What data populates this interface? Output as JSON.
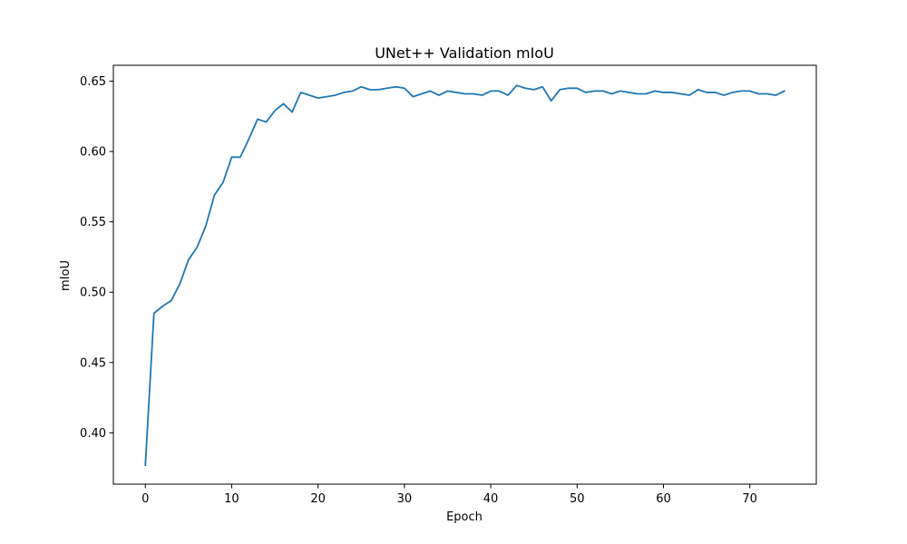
{
  "chart_data": {
    "type": "line",
    "title": "UNet++ Validation mIoU",
    "xlabel": "Epoch",
    "ylabel": "mIoU",
    "xlim": [
      -3.7,
      77.7
    ],
    "ylim": [
      0.3635,
      0.6613
    ],
    "xticks": [
      0,
      10,
      20,
      30,
      40,
      50,
      60,
      70
    ],
    "yticks": [
      0.4,
      0.45,
      0.5,
      0.55,
      0.6,
      0.65
    ],
    "ytick_labels": [
      "0.40",
      "0.45",
      "0.50",
      "0.55",
      "0.60",
      "0.65"
    ],
    "grid": false,
    "series": [
      {
        "color": "#1f77b4",
        "x": [
          0,
          1,
          2,
          3,
          4,
          5,
          6,
          7,
          8,
          9,
          10,
          11,
          12,
          13,
          14,
          15,
          16,
          17,
          18,
          19,
          20,
          21,
          22,
          23,
          24,
          25,
          26,
          27,
          28,
          29,
          30,
          31,
          32,
          33,
          34,
          35,
          36,
          37,
          38,
          39,
          40,
          41,
          42,
          43,
          44,
          45,
          46,
          47,
          48,
          49,
          50,
          51,
          52,
          53,
          54,
          55,
          56,
          57,
          58,
          59,
          60,
          61,
          62,
          63,
          64,
          65,
          66,
          67,
          68,
          69,
          70,
          71,
          72,
          73,
          74
        ],
        "values": [
          0.377,
          0.485,
          0.49,
          0.494,
          0.506,
          0.523,
          0.532,
          0.547,
          0.569,
          0.578,
          0.596,
          0.596,
          0.609,
          0.623,
          0.621,
          0.629,
          0.634,
          0.628,
          0.642,
          0.64,
          0.638,
          0.639,
          0.64,
          0.642,
          0.643,
          0.646,
          0.644,
          0.644,
          0.645,
          0.646,
          0.645,
          0.639,
          0.641,
          0.643,
          0.64,
          0.643,
          0.642,
          0.641,
          0.641,
          0.64,
          0.643,
          0.643,
          0.64,
          0.647,
          0.645,
          0.644,
          0.646,
          0.636,
          0.644,
          0.645,
          0.645,
          0.642,
          0.643,
          0.643,
          0.641,
          0.643,
          0.642,
          0.641,
          0.641,
          0.643,
          0.642,
          0.642,
          0.641,
          0.64,
          0.644,
          0.642,
          0.642,
          0.64,
          0.642,
          0.643,
          0.643,
          0.641,
          0.641,
          0.64,
          0.643
        ]
      }
    ]
  }
}
